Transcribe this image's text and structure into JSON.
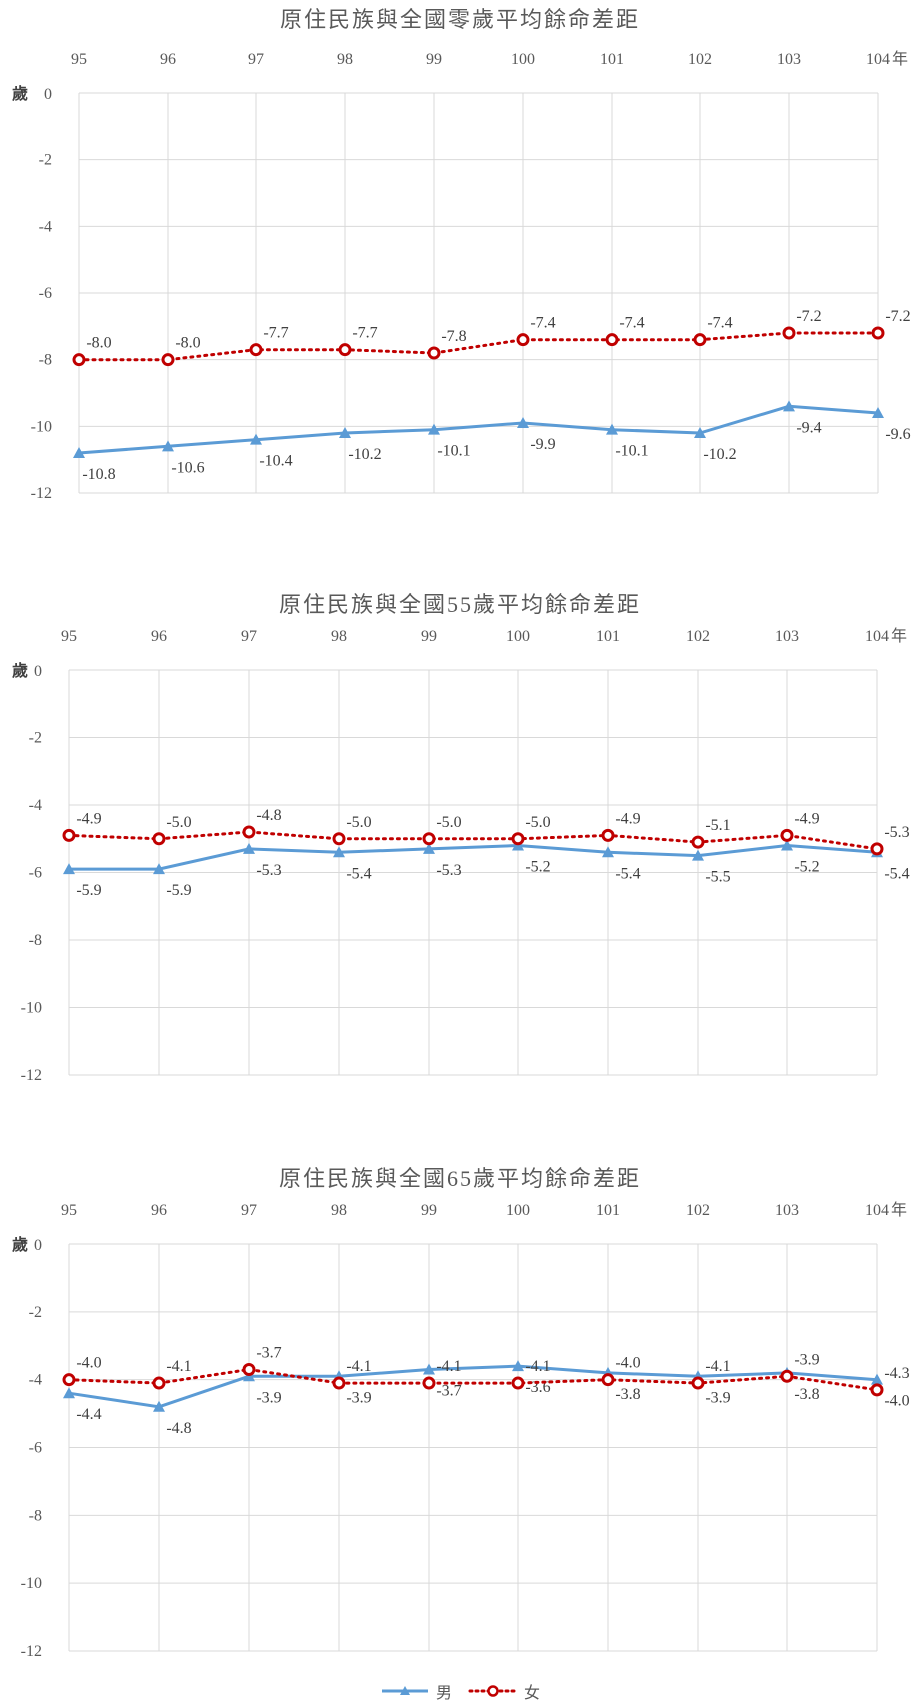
{
  "colors": {
    "male": "#5b9bd5",
    "female": "#c00000",
    "grid": "#d9d9d9",
    "text": "#595959"
  },
  "legend": {
    "male": "男",
    "female": "女"
  },
  "chart_data": [
    {
      "type": "line",
      "title": "原住民族與全國零歲平均餘命差距",
      "x": [
        "95",
        "96",
        "97",
        "98",
        "99",
        "100",
        "101",
        "102",
        "103",
        "104"
      ],
      "x_unit": "年",
      "y_unit": "歲",
      "ylim": [
        -12,
        0
      ],
      "yticks": [
        0,
        -2,
        -4,
        -6,
        -8,
        -10,
        -12
      ],
      "x_axis_position": "top",
      "grid": true,
      "legend_position": "bottom",
      "series": [
        {
          "name": "男",
          "marker": "triangle",
          "line": "solid",
          "values": [
            -10.8,
            -10.6,
            -10.4,
            -10.2,
            -10.1,
            -9.9,
            -10.1,
            -10.2,
            -9.4,
            -9.6
          ],
          "labels": [
            "-10.8",
            "-10.6",
            "-10.4",
            "-10.2",
            "-10.1",
            "-9.9",
            "-10.1",
            "-10.2",
            "-9.4",
            "-9.6"
          ]
        },
        {
          "name": "女",
          "marker": "circle",
          "line": "dotted",
          "values": [
            -8.0,
            -8.0,
            -7.7,
            -7.7,
            -7.8,
            -7.4,
            -7.4,
            -7.4,
            -7.2,
            -7.2
          ],
          "labels": [
            "-8.0",
            "-8.0",
            "-7.7",
            "-7.7",
            "-7.8",
            "-7.4",
            "-7.4",
            "-7.4",
            "-7.2",
            "-7.2"
          ]
        }
      ]
    },
    {
      "type": "line",
      "title": "原住民族與全國55歲平均餘命差距",
      "x": [
        "95",
        "96",
        "97",
        "98",
        "99",
        "100",
        "101",
        "102",
        "103",
        "104"
      ],
      "x_unit": "年",
      "y_unit": "歲",
      "ylim": [
        -12,
        0
      ],
      "yticks": [
        0,
        -2,
        -4,
        -6,
        -8,
        -10,
        -12
      ],
      "x_axis_position": "top",
      "grid": true,
      "legend_position": "bottom",
      "series": [
        {
          "name": "男",
          "marker": "triangle",
          "line": "solid",
          "values": [
            -5.9,
            -5.9,
            -5.3,
            -5.4,
            -5.3,
            -5.2,
            -5.4,
            -5.5,
            -5.2,
            -5.4
          ],
          "labels": [
            "-5.9",
            "-5.9",
            "-5.3",
            "-5.4",
            "-5.3",
            "-5.2",
            "-5.4",
            "-5.5",
            "-5.2",
            "-5.4"
          ]
        },
        {
          "name": "女",
          "marker": "circle",
          "line": "dotted",
          "values": [
            -4.9,
            -5.0,
            -4.8,
            -5.0,
            -5.0,
            -5.0,
            -4.9,
            -5.1,
            -4.9,
            -5.3
          ],
          "labels": [
            "-4.9",
            "-5.0",
            "-4.8",
            "-5.0",
            "-5.0",
            "-5.0",
            "-4.9",
            "-5.1",
            "-4.9",
            "-5.3"
          ]
        }
      ]
    },
    {
      "type": "line",
      "title": "原住民族與全國65歲平均餘命差距",
      "x": [
        "95",
        "96",
        "97",
        "98",
        "99",
        "100",
        "101",
        "102",
        "103",
        "104"
      ],
      "x_unit": "年",
      "y_unit": "歲",
      "ylim": [
        -12,
        0
      ],
      "yticks": [
        0,
        -2,
        -4,
        -6,
        -8,
        -10,
        -12
      ],
      "x_axis_position": "top",
      "grid": true,
      "legend_position": "bottom",
      "series": [
        {
          "name": "男",
          "marker": "triangle",
          "line": "solid",
          "values": [
            -4.4,
            -4.8,
            -3.9,
            -3.9,
            -3.7,
            -3.6,
            -3.8,
            -3.9,
            -3.8,
            -4.0
          ],
          "labels": [
            "-4.4",
            "-4.8",
            "-3.9",
            "-3.9",
            "-3.7",
            "-3.6",
            "-3.8",
            "-3.9",
            "-3.8",
            "-4.0"
          ]
        },
        {
          "name": "女",
          "marker": "circle",
          "line": "dotted",
          "values": [
            -4.0,
            -4.1,
            -3.7,
            -4.1,
            -4.1,
            -4.1,
            -4.0,
            -4.1,
            -3.9,
            -4.3
          ],
          "labels": [
            "-4.0",
            "-4.1",
            "-3.7",
            "-4.1",
            "-4.1",
            "-4.1",
            "-4.0",
            "-4.1",
            "-3.9",
            "-4.3"
          ]
        }
      ]
    }
  ]
}
